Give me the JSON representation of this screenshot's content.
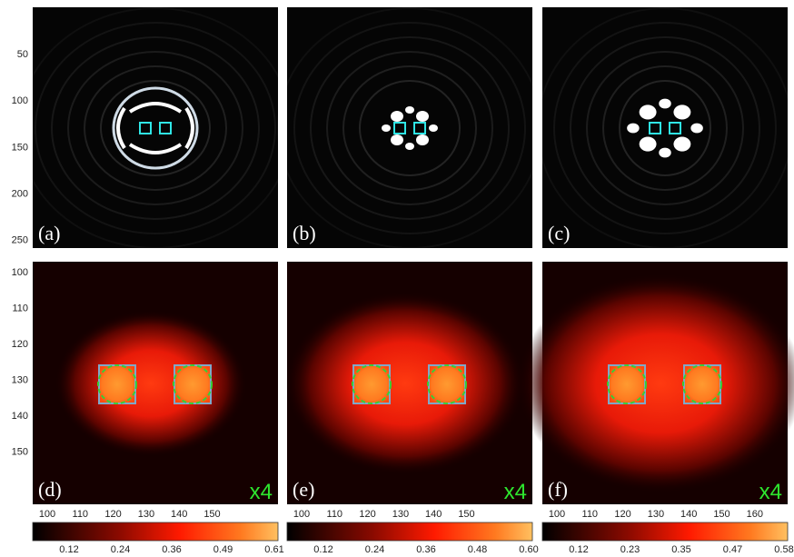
{
  "figure": {
    "top_row": {
      "y_ticks": [
        "50",
        "100",
        "150",
        "200",
        "250"
      ],
      "panels": [
        {
          "label": "(a)"
        },
        {
          "label": "(b)"
        },
        {
          "label": "(c)"
        }
      ]
    },
    "bottom_row": {
      "y_ticks": [
        "100",
        "110",
        "120",
        "130",
        "140",
        "150"
      ],
      "panels": [
        {
          "label": "(d)",
          "magnification": "x4",
          "x_ticks": [
            "100",
            "110",
            "120",
            "130",
            "140",
            "150"
          ],
          "colorbar_ticks": [
            "0.12",
            "0.24",
            "0.36",
            "0.49",
            "0.61"
          ]
        },
        {
          "label": "(e)",
          "magnification": "x4",
          "x_ticks": [
            "100",
            "110",
            "120",
            "130",
            "140",
            "150"
          ],
          "colorbar_ticks": [
            "0.12",
            "0.24",
            "0.36",
            "0.48",
            "0.60"
          ]
        },
        {
          "label": "(f)",
          "magnification": "x4",
          "x_ticks": [
            "100",
            "110",
            "120",
            "130",
            "140",
            "150",
            "160"
          ],
          "colorbar_ticks": [
            "0.12",
            "0.23",
            "0.35",
            "0.47",
            "0.58"
          ]
        }
      ]
    }
  }
}
